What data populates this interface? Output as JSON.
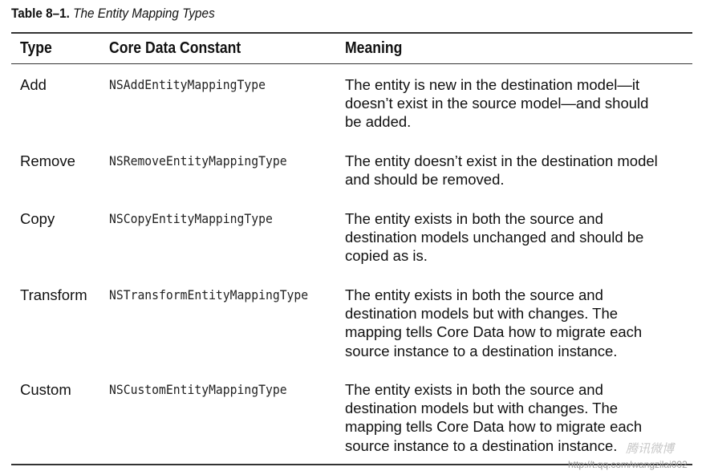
{
  "caption": {
    "number": "Table 8–1.",
    "title": "The Entity Mapping Types"
  },
  "columns": {
    "type": "Type",
    "constant": "Core Data Constant",
    "meaning": "Meaning"
  },
  "rows": [
    {
      "type": "Add",
      "constant": "NSAddEntityMappingType",
      "meaning": [
        "The entity is new in the destination model—it",
        "doesn’t exist in the source model—and should",
        "be added."
      ]
    },
    {
      "type": "Remove",
      "constant": "NSRemoveEntityMappingType",
      "meaning": [
        "The entity doesn’t exist in the destination model",
        "and should be removed."
      ]
    },
    {
      "type": "Copy",
      "constant": "NSCopyEntityMappingType",
      "meaning": [
        "The entity exists in both the source and",
        "destination models unchanged and should be",
        "copied as is."
      ]
    },
    {
      "type": "Transform",
      "constant": "NSTransformEntityMappingType",
      "meaning": [
        "The entity exists in both the source and",
        "destination models but with changes. The",
        "mapping tells Core Data how to migrate each",
        "source instance to a destination instance."
      ]
    },
    {
      "type": "Custom",
      "constant": "NSCustomEntityMappingType",
      "meaning": [
        "The entity exists in both the source and",
        "destination models but with changes. The",
        "mapping tells Core Data how to migrate each",
        "source instance to a destination instance."
      ]
    }
  ],
  "watermark": {
    "brand": "腾讯微博",
    "url": "http://t.qq.com/wangzilai002"
  }
}
